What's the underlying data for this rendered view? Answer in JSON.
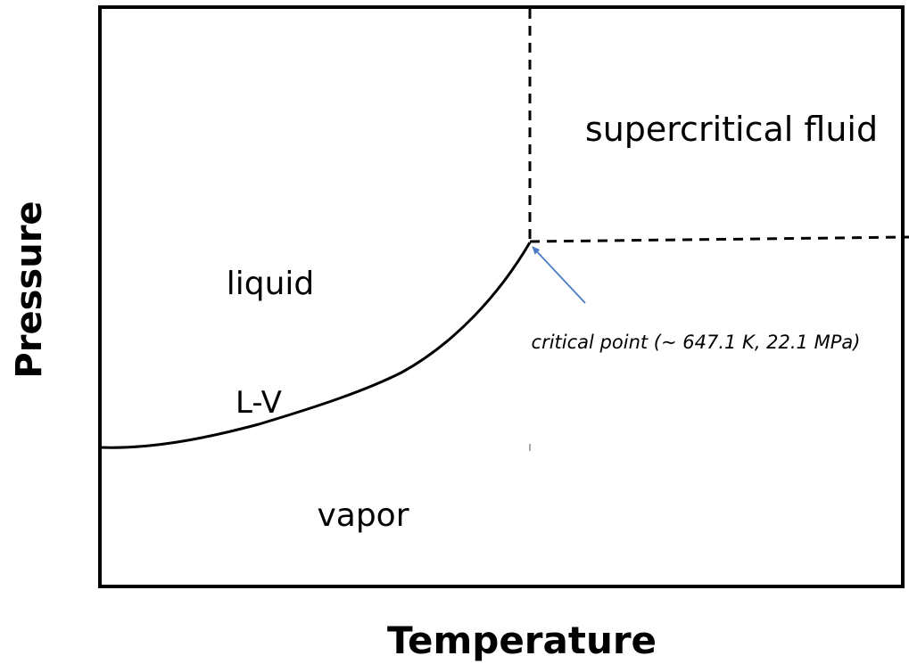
{
  "regions": {
    "supercritical": "supercritical fluid",
    "liquid": "liquid",
    "vapor": "vapor"
  },
  "curve_label": "L-V",
  "annotation": "critical point (~ 647.1 K, 22.1 MPa)",
  "axes": {
    "y_label": "Pressure",
    "x_label": "Temperature"
  }
}
